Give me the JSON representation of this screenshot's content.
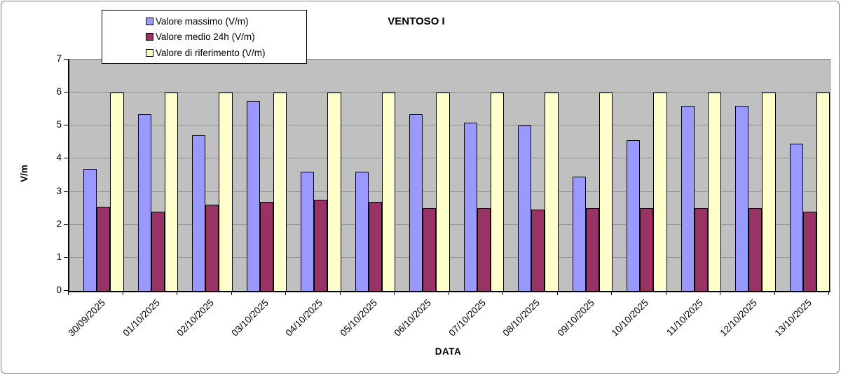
{
  "chart_data": {
    "type": "bar",
    "title": "VENTOSO I",
    "xlabel": "DATA",
    "ylabel": "V/m",
    "ylim": [
      0,
      7
    ],
    "y_tick_step": 1,
    "grid": true,
    "plot_background": "#C0C0C0",
    "gridline_color": "#8f8f8f",
    "legend_position": "top-left",
    "categories": [
      "30/09/2025",
      "01/10/2025",
      "02/10/2025",
      "03/10/2025",
      "04/10/2025",
      "05/10/2025",
      "06/10/2025",
      "07/10/2025",
      "08/10/2025",
      "09/10/2025",
      "10/10/2025",
      "11/10/2025",
      "12/10/2025",
      "13/10/2025"
    ],
    "series": [
      {
        "name": "Valore massimo (V/m)",
        "color": "#9999FF",
        "values": [
          3.7,
          5.35,
          4.7,
          5.75,
          3.6,
          3.6,
          5.35,
          5.1,
          5.0,
          3.45,
          4.55,
          5.6,
          5.6,
          4.45
        ]
      },
      {
        "name": "Valore medio 24h (V/m)",
        "color": "#993366",
        "values": [
          2.55,
          2.4,
          2.6,
          2.7,
          2.75,
          2.7,
          2.5,
          2.5,
          2.45,
          2.5,
          2.5,
          2.5,
          2.5,
          2.4
        ]
      },
      {
        "name": "Valore di riferimento (V/m)",
        "color": "#FFFFCC",
        "values": [
          6,
          6,
          6,
          6,
          6,
          6,
          6,
          6,
          6,
          6,
          6,
          6,
          6,
          6
        ]
      }
    ]
  }
}
